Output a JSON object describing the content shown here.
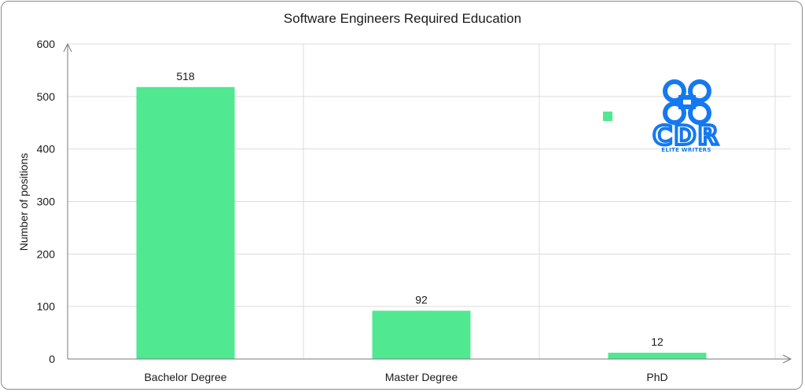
{
  "chart_data": {
    "type": "bar",
    "title": "Software Engineers Required Education",
    "xlabel": "",
    "ylabel": "Number of positions",
    "categories": [
      "Bachelor Degree",
      "Master Degree",
      "PhD"
    ],
    "values": [
      518,
      92,
      12
    ],
    "data_labels": [
      "518",
      "92",
      "12"
    ],
    "ylim": [
      0,
      600
    ],
    "yticks": [
      0,
      100,
      200,
      300,
      400,
      500,
      600
    ],
    "grid": true,
    "legend": "none",
    "bar_color": "#50e891"
  },
  "watermark": {
    "text": "CDR",
    "subtext": "ELITE WRITERS",
    "color": "#1479f0"
  }
}
